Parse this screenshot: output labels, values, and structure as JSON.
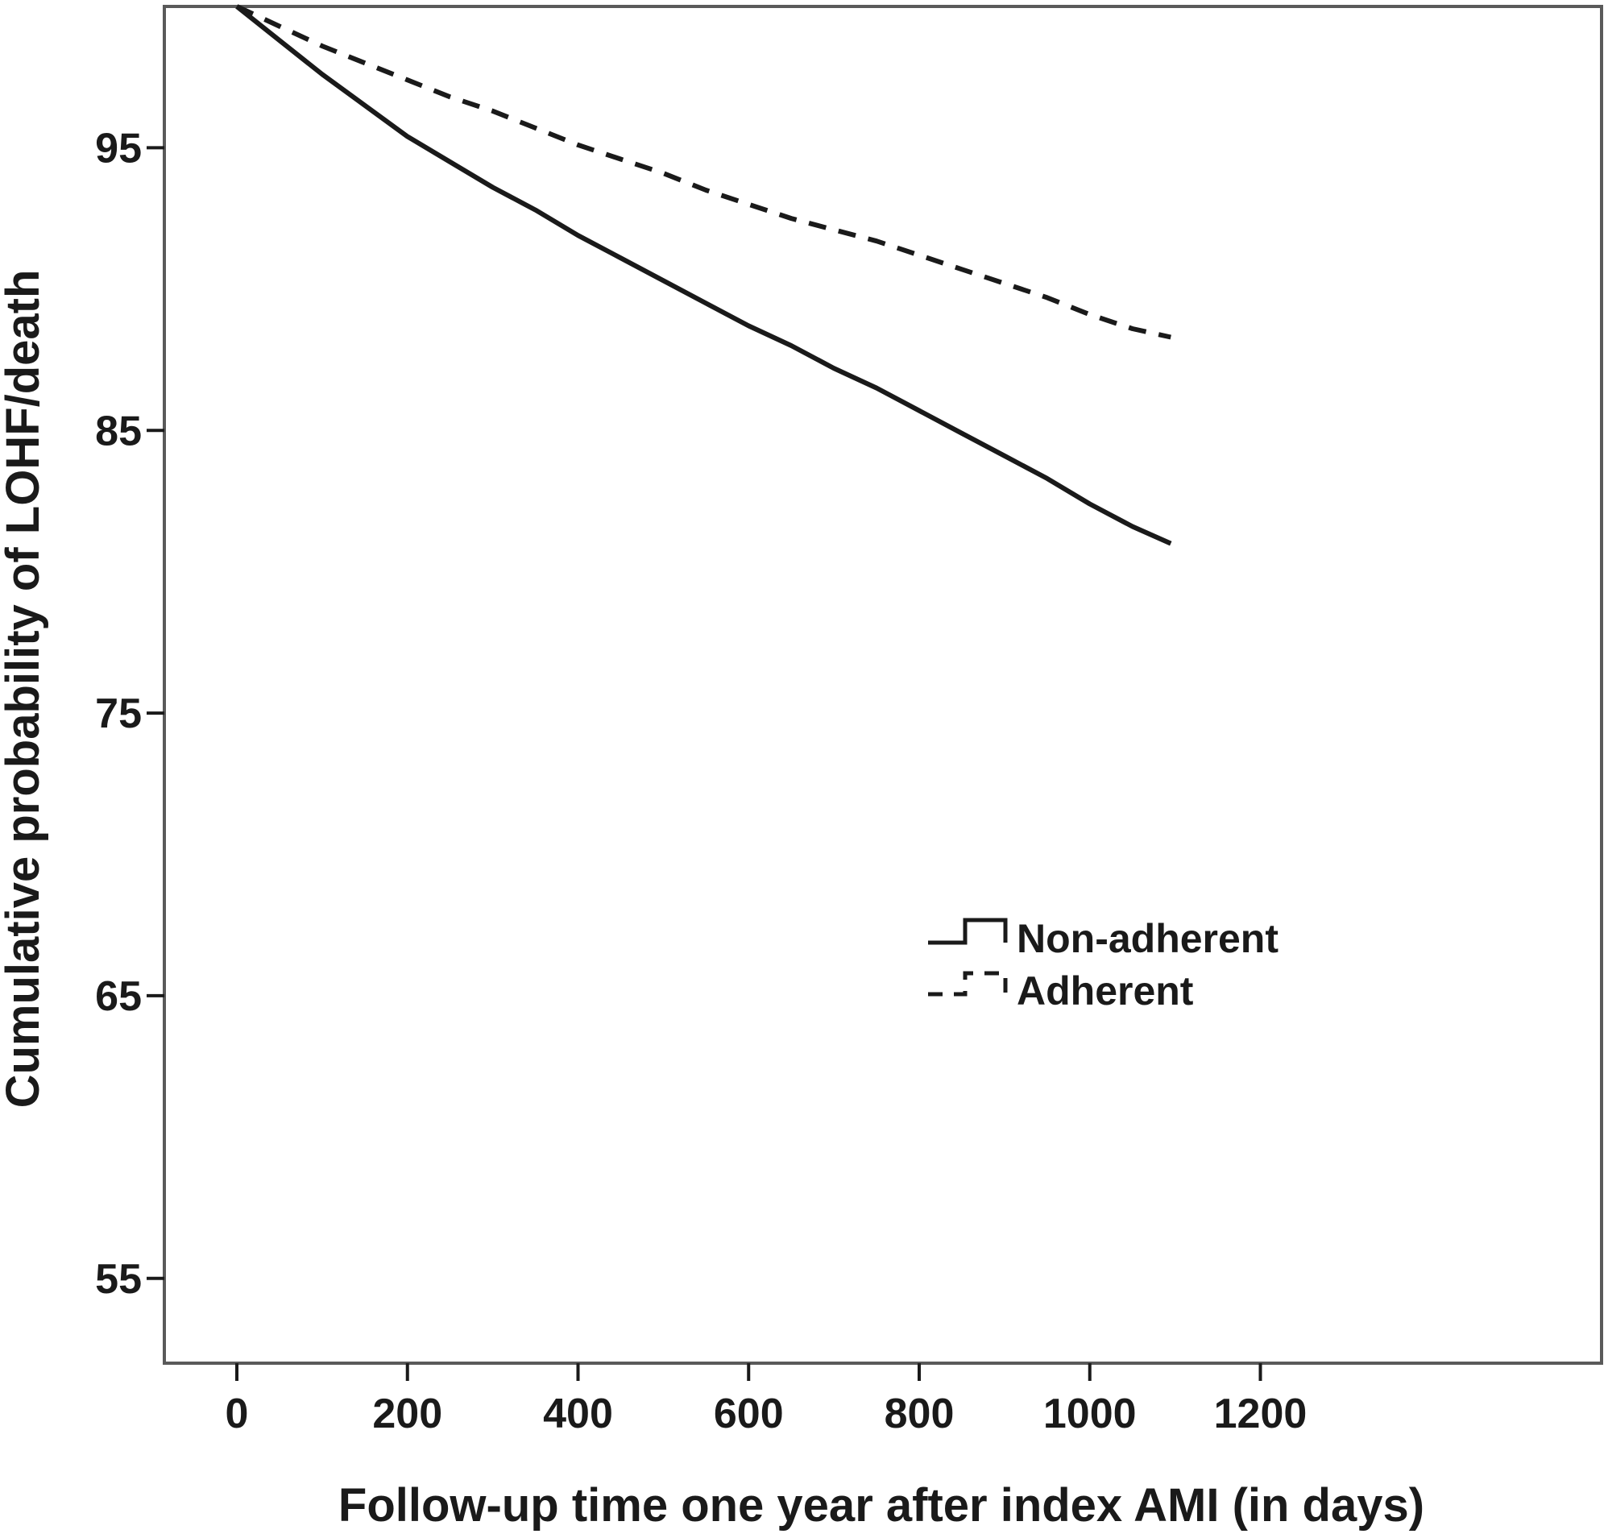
{
  "chart_data": {
    "type": "line",
    "title": "",
    "xlabel": "Follow-up time one year after index AMI (in days)",
    "ylabel": "Cumulative probability of LOHF/death",
    "xlim": [
      -85,
      1600
    ],
    "ylim": [
      52,
      100
    ],
    "x_ticks": [
      0,
      200,
      400,
      600,
      800,
      1000,
      1200
    ],
    "x_tick_labels": [
      "0",
      "200",
      "400",
      "600",
      "800",
      "1000",
      "1200"
    ],
    "y_ticks": [
      55,
      65,
      75,
      85,
      95
    ],
    "y_tick_labels": [
      "55",
      "65",
      "75",
      "85",
      "95"
    ],
    "grid": false,
    "legend_position": "center-right",
    "series": [
      {
        "name": "Non-adherent",
        "style": "solid",
        "color": "#1a1a1a",
        "points": [
          [
            0,
            100
          ],
          [
            50,
            98.8
          ],
          [
            100,
            97.6
          ],
          [
            150,
            96.5
          ],
          [
            200,
            95.4
          ],
          [
            250,
            94.5
          ],
          [
            300,
            93.6
          ],
          [
            350,
            92.8
          ],
          [
            400,
            91.9
          ],
          [
            450,
            91.1
          ],
          [
            500,
            90.3
          ],
          [
            550,
            89.5
          ],
          [
            600,
            88.7
          ],
          [
            650,
            88.0
          ],
          [
            700,
            87.2
          ],
          [
            750,
            86.5
          ],
          [
            800,
            85.7
          ],
          [
            850,
            84.9
          ],
          [
            900,
            84.1
          ],
          [
            950,
            83.3
          ],
          [
            1000,
            82.4
          ],
          [
            1050,
            81.6
          ],
          [
            1095,
            81.0
          ]
        ]
      },
      {
        "name": "Adherent",
        "style": "dashed",
        "color": "#1a1a1a",
        "points": [
          [
            0,
            100
          ],
          [
            50,
            99.3
          ],
          [
            100,
            98.6
          ],
          [
            150,
            98.0
          ],
          [
            200,
            97.4
          ],
          [
            250,
            96.8
          ],
          [
            300,
            96.3
          ],
          [
            350,
            95.7
          ],
          [
            400,
            95.1
          ],
          [
            450,
            94.6
          ],
          [
            500,
            94.1
          ],
          [
            550,
            93.5
          ],
          [
            600,
            93.0
          ],
          [
            650,
            92.5
          ],
          [
            700,
            92.1
          ],
          [
            750,
            91.7
          ],
          [
            800,
            91.2
          ],
          [
            850,
            90.7
          ],
          [
            900,
            90.2
          ],
          [
            950,
            89.7
          ],
          [
            1000,
            89.1
          ],
          [
            1050,
            88.6
          ],
          [
            1095,
            88.3
          ]
        ]
      }
    ]
  }
}
